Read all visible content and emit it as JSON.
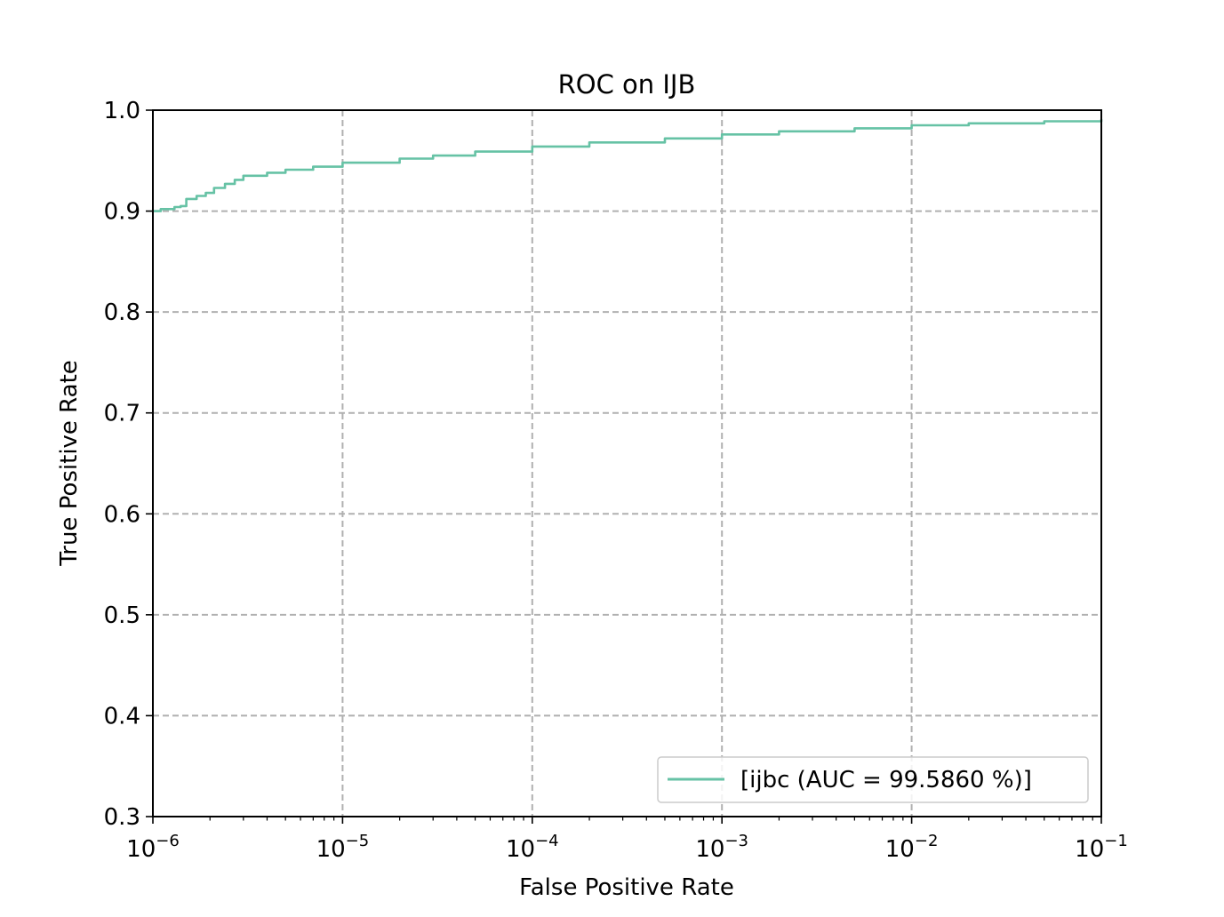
{
  "chart_data": {
    "type": "line",
    "title": "ROC on IJB",
    "xlabel": "False Positive Rate",
    "ylabel": "True Positive Rate",
    "xscale": "log",
    "xlim": [
      1e-06,
      0.1
    ],
    "ylim": [
      0.3,
      1.0
    ],
    "grid": true,
    "legend_position": "lower-right",
    "x_ticks": [
      {
        "base": "10",
        "exp": "−6"
      },
      {
        "base": "10",
        "exp": "−5"
      },
      {
        "base": "10",
        "exp": "−4"
      },
      {
        "base": "10",
        "exp": "−3"
      },
      {
        "base": "10",
        "exp": "−2"
      },
      {
        "base": "10",
        "exp": "−1"
      }
    ],
    "y_ticks": [
      "0.3",
      "0.4",
      "0.5",
      "0.6",
      "0.7",
      "0.8",
      "0.9",
      "1.0"
    ],
    "series": [
      {
        "name": "[ijbc (AUC = 99.5860 %)]",
        "color": "#66c2a5",
        "x": [
          1e-06,
          1.1e-06,
          1.3e-06,
          1.4e-06,
          1.5e-06,
          1.7e-06,
          1.9e-06,
          2.1e-06,
          2.4e-06,
          2.7e-06,
          3e-06,
          4e-06,
          5e-06,
          7e-06,
          1e-05,
          2e-05,
          3e-05,
          5e-05,
          0.0001,
          0.0002,
          0.0005,
          0.001,
          0.002,
          0.005,
          0.01,
          0.02,
          0.05,
          0.1
        ],
        "y": [
          0.9,
          0.902,
          0.904,
          0.905,
          0.912,
          0.915,
          0.918,
          0.923,
          0.927,
          0.931,
          0.935,
          0.938,
          0.941,
          0.944,
          0.948,
          0.952,
          0.955,
          0.959,
          0.964,
          0.968,
          0.972,
          0.976,
          0.979,
          0.982,
          0.985,
          0.987,
          0.989,
          0.991
        ]
      }
    ]
  }
}
